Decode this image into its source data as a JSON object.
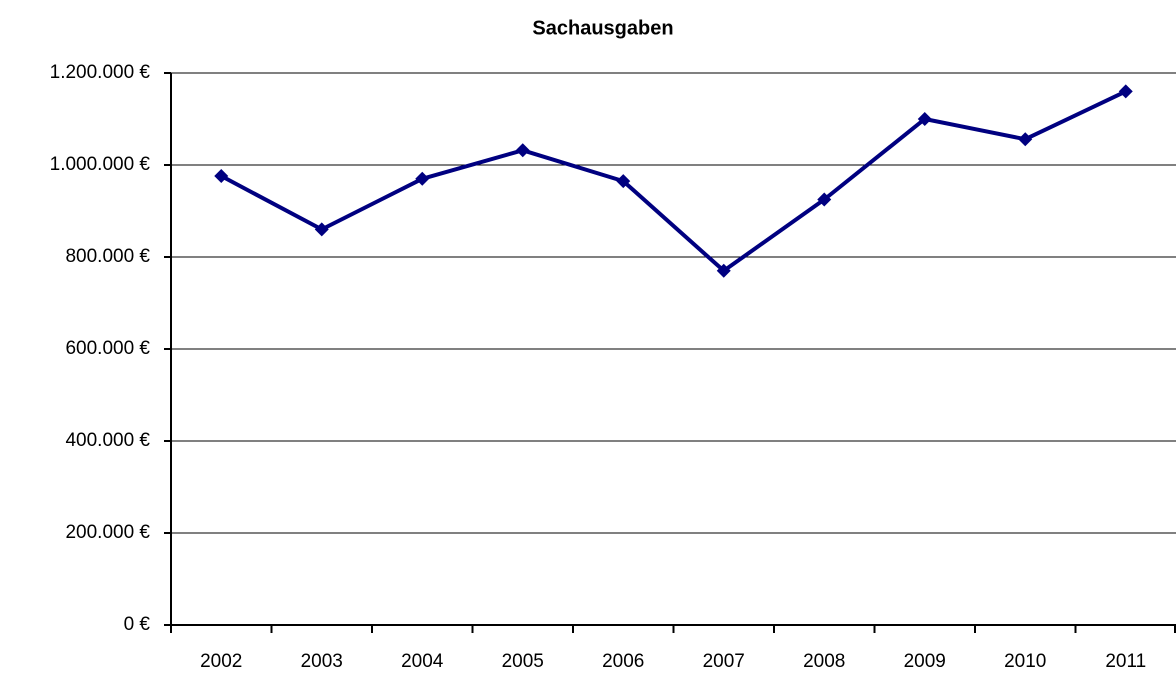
{
  "chart_data": {
    "type": "line",
    "title": "Sachausgaben",
    "categories": [
      "2002",
      "2003",
      "2004",
      "2005",
      "2006",
      "2007",
      "2008",
      "2009",
      "2010",
      "2011"
    ],
    "series": [
      {
        "name": "Sachausgaben",
        "color": "#000080",
        "values": [
          976000,
          860000,
          970000,
          1032000,
          965000,
          770000,
          925000,
          1100000,
          1056000,
          1160000
        ]
      }
    ],
    "ylim": [
      0,
      1200000
    ],
    "yticks": [
      {
        "value": 0,
        "label": "0 €"
      },
      {
        "value": 200000,
        "label": "200.000 €"
      },
      {
        "value": 400000,
        "label": "400.000 €"
      },
      {
        "value": 600000,
        "label": "600.000 €"
      },
      {
        "value": 800000,
        "label": "800.000 €"
      },
      {
        "value": 1000000,
        "label": "1.000.000 €"
      },
      {
        "value": 1200000,
        "label": "1.200.000 €"
      }
    ],
    "grid": true
  }
}
